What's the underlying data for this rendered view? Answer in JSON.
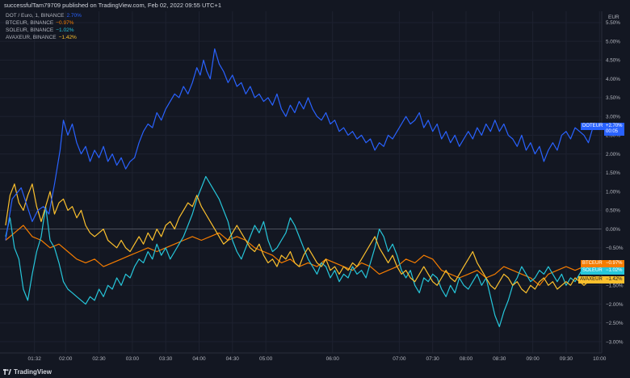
{
  "header": {
    "published": "successfulTam79709 published on TradingView.com, Feb 02, 2022 09:55 UTC+1"
  },
  "footer": {
    "brand": "TradingView"
  },
  "colors": {
    "background": "#131722",
    "grid": "#1e2230",
    "dot": "#2962ff",
    "btc": "#f57c00",
    "sol": "#26c6da",
    "avax": "#fbc02d",
    "zero_line": "#5d606b"
  },
  "legend": [
    {
      "name": "DOT / Euro, 1, BINANCE",
      "change": "2.70%",
      "color": "#2962ff"
    },
    {
      "name": "BTCEUR, BINANCE",
      "change": "−0.97%",
      "color": "#f57c00"
    },
    {
      "name": "SOLEUR, BINANCE",
      "change": "−1.02%",
      "color": "#26c6da"
    },
    {
      "name": "AVAXEUR, BINANCE",
      "change": "−1.42%",
      "color": "#fbc02d"
    }
  ],
  "tags": {
    "dot": {
      "symbol": "DOTEUR",
      "value": "+2.70%",
      "time": "00:05"
    },
    "btc": {
      "symbol": "BTCEUR",
      "value": "−0.97%"
    },
    "sol": {
      "symbol": "SOLEUR",
      "value": "−1.02%"
    },
    "avax": {
      "symbol": "AVAXEUR",
      "value": "−1.42%"
    }
  },
  "chart_data": {
    "type": "line",
    "currency_label": "EUR",
    "y_axis_ticks": [
      "5.50%",
      "5.00%",
      "4.50%",
      "4.00%",
      "3.50%",
      "3.00%",
      "2.50%",
      "2.00%",
      "1.50%",
      "1.00%",
      "0.50%",
      "0.00%",
      "−0.50%",
      "−1.00%",
      "−1.50%",
      "−2.00%",
      "−2.50%",
      "−3.00%"
    ],
    "y_tick_values": [
      5.5,
      5.0,
      4.5,
      4.0,
      3.5,
      3.0,
      2.5,
      2.0,
      1.5,
      1.0,
      0.5,
      0.0,
      -0.5,
      -1.0,
      -1.5,
      -2.0,
      -2.5,
      -3.0
    ],
    "ylim": [
      -3.3,
      5.8
    ],
    "x_axis_ticks": [
      "01:32",
      "02:00",
      "02:30",
      "03:00",
      "03:30",
      "04:00",
      "04:30",
      "05:00",
      "06:00",
      "07:00",
      "07:30",
      "08:00",
      "08:30",
      "09:00",
      "09:30",
      "10:00"
    ],
    "x_tick_minutes": [
      92,
      120,
      150,
      180,
      210,
      240,
      270,
      300,
      360,
      420,
      450,
      480,
      510,
      540,
      570,
      600
    ],
    "xlim_minutes": [
      61,
      602
    ],
    "grid": true,
    "series": [
      {
        "name": "DOTEUR",
        "color": "#2962ff",
        "x": [
          66,
          72,
          80,
          90,
          95,
          100,
          105,
          110,
          115,
          118,
          122,
          126,
          130,
          134,
          138,
          142,
          146,
          150,
          154,
          158,
          162,
          166,
          170,
          174,
          178,
          182,
          186,
          190,
          194,
          198,
          202,
          206,
          210,
          214,
          218,
          222,
          226,
          230,
          234,
          238,
          241,
          244,
          247,
          250,
          254,
          258,
          262,
          266,
          270,
          274,
          278,
          282,
          286,
          290,
          294,
          298,
          302,
          306,
          310,
          314,
          318,
          322,
          326,
          330,
          334,
          338,
          342,
          346,
          350,
          354,
          358,
          362,
          366,
          370,
          374,
          378,
          382,
          386,
          390,
          394,
          398,
          402,
          406,
          410,
          414,
          418,
          422,
          426,
          430,
          434,
          438,
          442,
          446,
          450,
          454,
          458,
          462,
          466,
          470,
          474,
          478,
          482,
          486,
          490,
          494,
          498,
          502,
          506,
          510,
          514,
          518,
          522,
          526,
          530,
          534,
          538,
          542,
          546,
          550,
          554,
          558,
          562,
          566,
          570,
          574,
          578,
          582,
          586,
          590,
          594
        ],
        "y": [
          -0.3,
          0.8,
          1.1,
          0.2,
          0.5,
          0.6,
          0.4,
          1.2,
          2.1,
          2.9,
          2.5,
          2.8,
          2.3,
          2.0,
          2.2,
          1.8,
          2.1,
          1.9,
          2.2,
          1.8,
          2.0,
          1.7,
          1.9,
          1.6,
          1.8,
          1.9,
          2.3,
          2.6,
          2.8,
          2.7,
          3.1,
          2.9,
          3.2,
          3.4,
          3.6,
          3.5,
          3.8,
          3.6,
          3.9,
          4.3,
          4.1,
          4.5,
          4.2,
          4.0,
          4.8,
          4.4,
          4.2,
          3.9,
          4.1,
          3.8,
          3.9,
          3.6,
          3.8,
          3.5,
          3.6,
          3.4,
          3.5,
          3.3,
          3.6,
          3.2,
          3.0,
          3.3,
          3.1,
          3.4,
          3.2,
          3.5,
          3.2,
          3.0,
          2.9,
          3.1,
          2.8,
          2.9,
          2.6,
          2.7,
          2.5,
          2.6,
          2.4,
          2.5,
          2.3,
          2.4,
          2.1,
          2.3,
          2.2,
          2.5,
          2.4,
          2.6,
          2.8,
          3.0,
          2.8,
          2.9,
          3.1,
          2.7,
          2.9,
          2.6,
          2.8,
          2.4,
          2.6,
          2.3,
          2.5,
          2.2,
          2.4,
          2.6,
          2.4,
          2.7,
          2.5,
          2.8,
          2.6,
          2.9,
          2.6,
          2.8,
          2.5,
          2.4,
          2.2,
          2.5,
          2.1,
          2.3,
          2.0,
          2.2,
          1.8,
          2.1,
          2.3,
          2.1,
          2.5,
          2.6,
          2.4,
          2.7,
          2.6,
          2.5,
          2.3,
          2.7
        ]
      },
      {
        "name": "BTCEUR",
        "color": "#f57c00",
        "x": [
          66,
          74,
          82,
          90,
          98,
          106,
          114,
          122,
          130,
          138,
          146,
          154,
          162,
          170,
          178,
          186,
          194,
          202,
          210,
          218,
          226,
          234,
          242,
          250,
          258,
          266,
          274,
          282,
          290,
          298,
          306,
          314,
          322,
          330,
          338,
          346,
          354,
          362,
          370,
          378,
          386,
          394,
          402,
          410,
          418,
          426,
          434,
          442,
          450,
          458,
          466,
          474,
          482,
          490,
          498,
          506,
          514,
          522,
          530,
          538,
          546,
          554,
          562,
          570,
          578,
          586,
          594
        ],
        "y": [
          -0.3,
          -0.1,
          0.1,
          -0.2,
          -0.3,
          -0.5,
          -0.4,
          -0.6,
          -0.8,
          -0.9,
          -0.8,
          -1.0,
          -0.9,
          -0.8,
          -0.7,
          -0.6,
          -0.5,
          -0.6,
          -0.5,
          -0.4,
          -0.3,
          -0.2,
          -0.3,
          -0.2,
          -0.1,
          -0.3,
          -0.2,
          -0.3,
          -0.5,
          -0.6,
          -0.7,
          -0.9,
          -0.8,
          -1.0,
          -0.9,
          -1.0,
          -0.8,
          -0.9,
          -1.0,
          -1.1,
          -0.9,
          -1.0,
          -1.2,
          -1.1,
          -1.0,
          -0.8,
          -0.9,
          -0.7,
          -0.8,
          -1.1,
          -1.2,
          -1.3,
          -1.2,
          -1.1,
          -1.3,
          -1.2,
          -1.0,
          -1.1,
          -1.2,
          -1.3,
          -1.5,
          -1.2,
          -1.1,
          -1.0,
          -1.1,
          -1.0,
          -0.97
        ]
      },
      {
        "name": "SOLEUR",
        "color": "#26c6da",
        "x": [
          66,
          70,
          74,
          78,
          82,
          86,
          90,
          94,
          98,
          102,
          106,
          110,
          114,
          118,
          122,
          126,
          130,
          134,
          138,
          142,
          146,
          150,
          154,
          158,
          162,
          166,
          170,
          174,
          178,
          182,
          186,
          190,
          194,
          198,
          202,
          206,
          210,
          214,
          218,
          222,
          226,
          230,
          234,
          238,
          242,
          246,
          250,
          254,
          258,
          262,
          266,
          270,
          274,
          278,
          282,
          286,
          290,
          294,
          298,
          302,
          306,
          310,
          314,
          318,
          322,
          326,
          330,
          334,
          338,
          342,
          346,
          350,
          354,
          358,
          362,
          366,
          370,
          374,
          378,
          382,
          386,
          390,
          394,
          398,
          402,
          406,
          410,
          414,
          418,
          422,
          426,
          430,
          434,
          438,
          442,
          446,
          450,
          454,
          458,
          462,
          466,
          470,
          474,
          478,
          482,
          486,
          490,
          494,
          498,
          502,
          506,
          510,
          514,
          518,
          522,
          526,
          530,
          534,
          538,
          542,
          546,
          550,
          554,
          558,
          562,
          566,
          570,
          574,
          578,
          582,
          586,
          590,
          594
        ],
        "y": [
          -0.2,
          0.3,
          -0.5,
          -0.8,
          -1.6,
          -1.9,
          -1.2,
          -0.6,
          -0.2,
          0.6,
          -0.3,
          -0.5,
          -0.9,
          -1.4,
          -1.6,
          -1.7,
          -1.8,
          -1.9,
          -2.0,
          -1.8,
          -1.9,
          -1.6,
          -1.8,
          -1.5,
          -1.6,
          -1.3,
          -1.5,
          -1.2,
          -1.3,
          -1.0,
          -0.8,
          -0.9,
          -0.6,
          -0.8,
          -0.4,
          -0.7,
          -0.5,
          -0.8,
          -0.6,
          -0.4,
          -0.2,
          0.1,
          0.4,
          0.8,
          1.1,
          1.4,
          1.2,
          1.0,
          0.8,
          0.5,
          0.2,
          -0.3,
          -0.6,
          -0.8,
          -0.5,
          -0.2,
          0.1,
          -0.1,
          0.2,
          -0.3,
          -0.6,
          -0.5,
          -0.3,
          -0.1,
          0.3,
          0.1,
          -0.2,
          -0.5,
          -0.8,
          -1.0,
          -1.2,
          -0.9,
          -1.0,
          -1.3,
          -1.1,
          -1.4,
          -1.2,
          -1.3,
          -1.0,
          -1.2,
          -1.1,
          -1.3,
          -0.9,
          -0.5,
          0.0,
          -0.2,
          -0.6,
          -0.4,
          -0.7,
          -1.1,
          -1.3,
          -1.1,
          -1.5,
          -1.7,
          -1.3,
          -1.4,
          -1.2,
          -1.3,
          -1.6,
          -1.8,
          -1.5,
          -1.7,
          -1.3,
          -1.5,
          -1.6,
          -1.4,
          -1.2,
          -1.5,
          -1.3,
          -1.8,
          -2.3,
          -2.6,
          -2.2,
          -1.9,
          -1.5,
          -1.3,
          -1.0,
          -1.2,
          -1.4,
          -1.3,
          -1.1,
          -1.2,
          -1.0,
          -1.2,
          -1.4,
          -1.2,
          -1.5,
          -1.3,
          -1.4,
          -1.2,
          -1.0,
          -1.1,
          -1.02
        ]
      },
      {
        "name": "AVAXEUR",
        "color": "#fbc02d",
        "x": [
          66,
          70,
          74,
          78,
          82,
          86,
          90,
          94,
          98,
          102,
          106,
          110,
          114,
          118,
          122,
          126,
          130,
          134,
          138,
          142,
          146,
          150,
          154,
          158,
          162,
          166,
          170,
          174,
          178,
          182,
          186,
          190,
          194,
          198,
          202,
          206,
          210,
          214,
          218,
          222,
          226,
          230,
          234,
          238,
          242,
          246,
          250,
          254,
          258,
          262,
          266,
          270,
          274,
          278,
          282,
          286,
          290,
          294,
          298,
          302,
          306,
          310,
          314,
          318,
          322,
          326,
          330,
          334,
          338,
          342,
          346,
          350,
          354,
          358,
          362,
          366,
          370,
          374,
          378,
          382,
          386,
          390,
          394,
          398,
          402,
          406,
          410,
          414,
          418,
          422,
          426,
          430,
          434,
          438,
          442,
          446,
          450,
          454,
          458,
          462,
          466,
          470,
          474,
          478,
          482,
          486,
          490,
          494,
          498,
          502,
          506,
          510,
          514,
          518,
          522,
          526,
          530,
          534,
          538,
          542,
          546,
          550,
          554,
          558,
          562,
          566,
          570,
          574,
          578,
          582,
          586,
          590,
          594
        ],
        "y": [
          0.1,
          0.9,
          1.2,
          0.7,
          0.5,
          0.9,
          1.2,
          0.6,
          0.2,
          0.6,
          1.0,
          0.4,
          0.7,
          0.8,
          0.5,
          0.6,
          0.3,
          0.5,
          0.1,
          -0.1,
          -0.2,
          -0.1,
          0.0,
          -0.3,
          -0.4,
          -0.5,
          -0.3,
          -0.5,
          -0.6,
          -0.4,
          -0.2,
          -0.4,
          -0.1,
          -0.3,
          0.0,
          -0.2,
          0.1,
          0.2,
          0.0,
          0.3,
          0.5,
          0.7,
          0.6,
          0.9,
          0.6,
          0.4,
          0.2,
          0.0,
          -0.2,
          -0.4,
          -0.3,
          -0.1,
          0.1,
          -0.1,
          -0.3,
          -0.5,
          -0.6,
          -0.4,
          -0.7,
          -0.9,
          -0.8,
          -1.0,
          -0.7,
          -0.8,
          -0.6,
          -0.9,
          -1.0,
          -0.7,
          -0.5,
          -0.7,
          -0.9,
          -1.0,
          -0.8,
          -1.1,
          -1.0,
          -1.2,
          -1.0,
          -1.1,
          -0.9,
          -1.0,
          -0.8,
          -0.6,
          -0.4,
          -0.2,
          -0.5,
          -0.7,
          -0.9,
          -0.7,
          -1.0,
          -1.2,
          -1.1,
          -1.3,
          -1.4,
          -1.2,
          -1.0,
          -1.2,
          -1.4,
          -1.5,
          -1.3,
          -1.1,
          -1.3,
          -1.4,
          -1.2,
          -1.0,
          -0.8,
          -0.6,
          -0.9,
          -1.1,
          -1.3,
          -1.5,
          -1.6,
          -1.4,
          -1.2,
          -1.3,
          -1.5,
          -1.4,
          -1.6,
          -1.7,
          -1.5,
          -1.6,
          -1.4,
          -1.3,
          -1.5,
          -1.4,
          -1.6,
          -1.5,
          -1.4,
          -1.5,
          -1.3,
          -1.4,
          -1.5,
          -1.4,
          -1.42
        ]
      }
    ]
  }
}
